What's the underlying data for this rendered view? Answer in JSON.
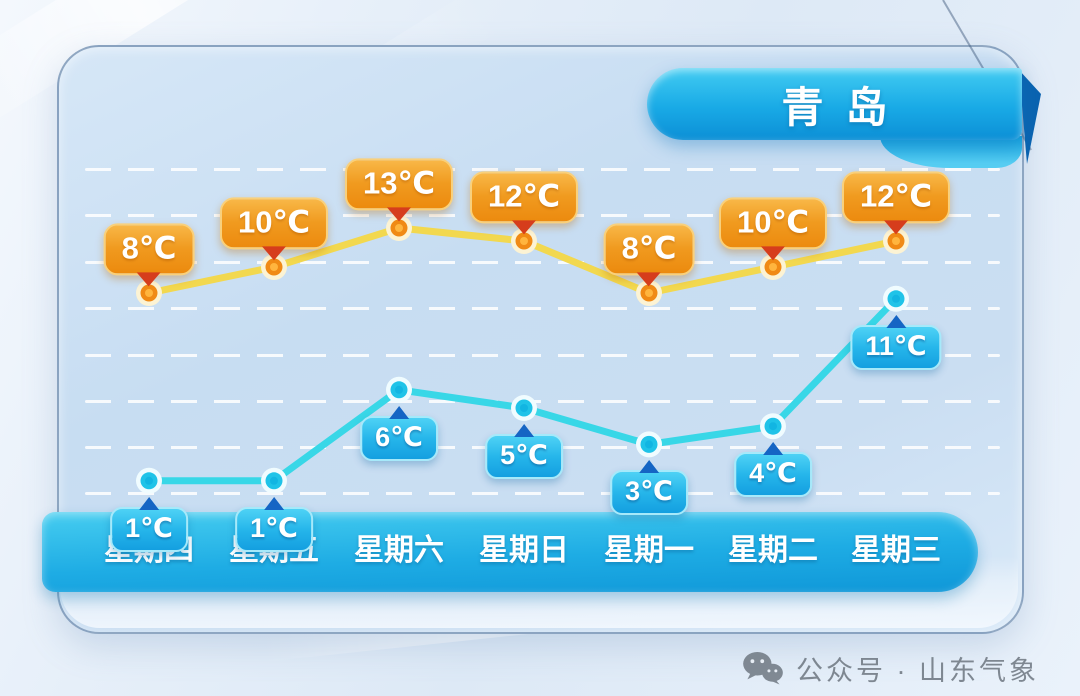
{
  "title_badge": {
    "city": "青岛"
  },
  "chart_data": {
    "type": "line",
    "title": "青岛",
    "categories": [
      "星期四",
      "星期五",
      "星期六",
      "星期日",
      "星期一",
      "星期二",
      "星期三"
    ],
    "unit": "℃",
    "series": [
      {
        "id": "high",
        "values": [
          8,
          10,
          13,
          12,
          8,
          10,
          12
        ],
        "point_labels": [
          "8℃",
          "10℃",
          "13℃",
          "12℃",
          "8℃",
          "10℃",
          "12℃"
        ],
        "line_color": "#f2d84f",
        "marker_color": "#f08a15",
        "badge_color": "#ee8c0e",
        "pointer_color": "#d63d1c"
      },
      {
        "id": "low",
        "values": [
          1,
          1,
          6,
          5,
          3,
          4,
          11
        ],
        "point_labels": [
          "1℃",
          "1℃",
          "6℃",
          "5℃",
          "3℃",
          "4℃",
          "11℃"
        ],
        "line_color": "#38d7e7",
        "marker_color": "#1fc3e8",
        "badge_color": "#18a6e4",
        "pointer_color": "#1565c4"
      }
    ],
    "xlabel": "",
    "ylabel": "",
    "ylim": [
      0,
      15
    ],
    "grid": "horizontal-dashed",
    "legend_position": "none"
  },
  "footer": {
    "watermark": "公众号 · 山东气象"
  },
  "colors": {
    "panel": "#c9def2",
    "ribbon_top": "#42ccf2",
    "ribbon_bottom": "#0c8fd6",
    "day_ribbon": "#1eace4",
    "watermark_text": "#6d7680"
  }
}
